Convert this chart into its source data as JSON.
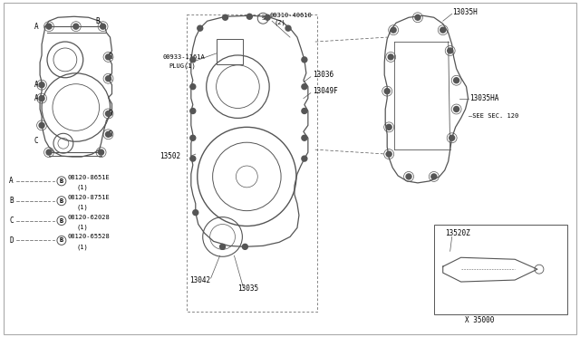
{
  "bg_color": "#ffffff",
  "line_color": "#555555",
  "text_color": "#000000",
  "legend_data": [
    {
      "label": "A",
      "bolt": "B",
      "part": "08120-8651E",
      "qty": "(1)"
    },
    {
      "label": "B",
      "bolt": "B",
      "part": "08120-8751E",
      "qty": "(1)"
    },
    {
      "label": "C",
      "bolt": "B",
      "part": "08120-62028",
      "qty": "(1)"
    },
    {
      "label": "D",
      "bolt": "B",
      "part": "08120-65528",
      "qty": "(1)"
    }
  ]
}
